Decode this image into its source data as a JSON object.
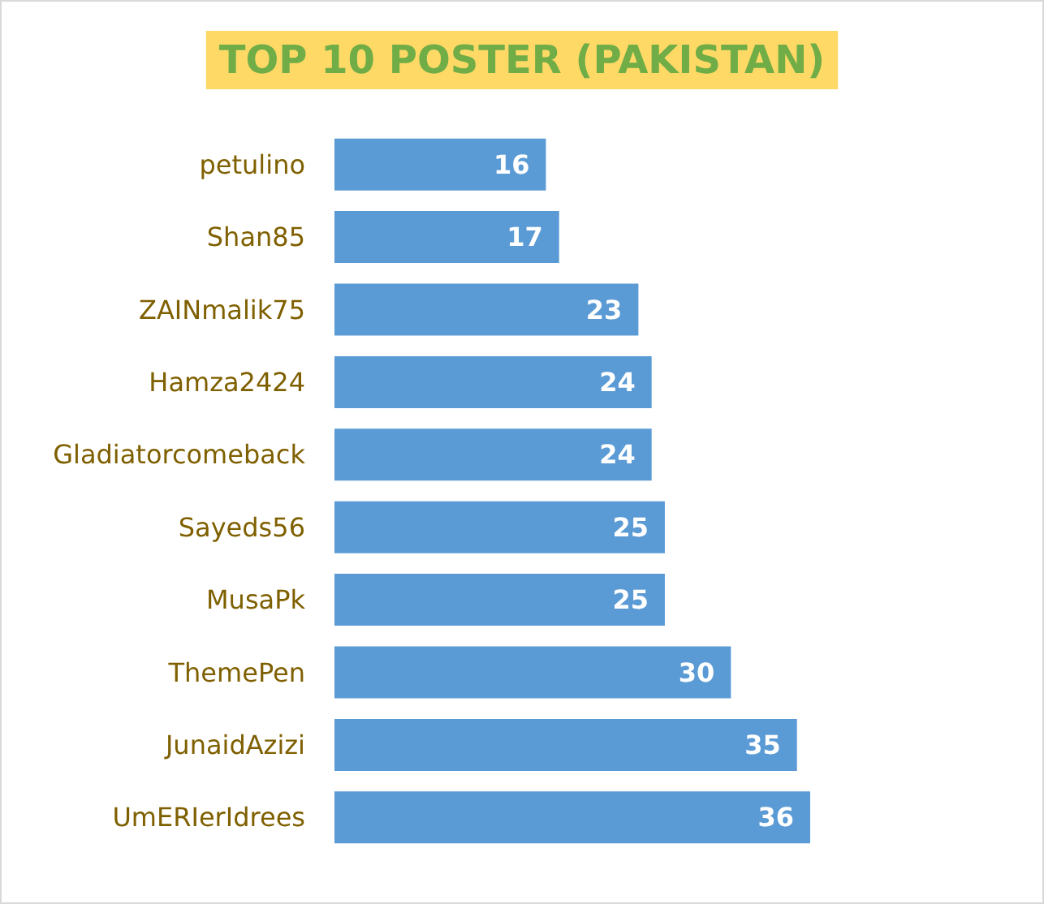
{
  "chart_data": {
    "type": "bar",
    "orientation": "horizontal",
    "title": "TOP 10 POSTER (PAKISTAN)",
    "categories": [
      "petulino",
      "Shan85",
      "ZAINmalik75",
      "Hamza2424",
      "Gladiatorcomeback",
      "Sayeds56",
      "MusaPk",
      "ThemePen",
      "JunaidAzizi",
      "UmERIerIdrees"
    ],
    "values": [
      16,
      17,
      23,
      24,
      24,
      25,
      25,
      30,
      35,
      36
    ],
    "color": "#5b9bd5",
    "data_labels": true,
    "tick_labels": "y"
  }
}
